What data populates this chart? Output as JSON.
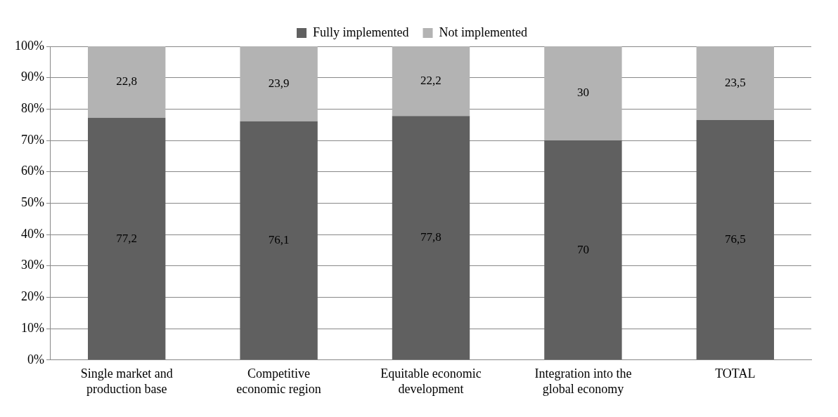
{
  "chart_data": {
    "type": "bar",
    "stacked": true,
    "categories": [
      "Single market and\nproduction base",
      "Competitive\neconomic region",
      "Equitable economic\ndevelopment",
      "Integration into the\nglobal economy",
      "TOTAL"
    ],
    "series": [
      {
        "name": "Fully implemented",
        "color": "#606060",
        "values": [
          77.2,
          76.1,
          77.8,
          70,
          76.5
        ],
        "value_labels": [
          "77,2",
          "76,1",
          "77,8",
          "70",
          "76,5"
        ]
      },
      {
        "name": "Not implemented",
        "color": "#b3b3b3",
        "values": [
          22.8,
          23.9,
          22.2,
          30,
          23.5
        ],
        "value_labels": [
          "22,8",
          "23,9",
          "22,2",
          "30",
          "23,5"
        ]
      }
    ],
    "ylim": [
      0,
      100
    ],
    "yticks": [
      {
        "value": 0,
        "label": "0%"
      },
      {
        "value": 10,
        "label": "10%"
      },
      {
        "value": 20,
        "label": "20%"
      },
      {
        "value": 30,
        "label": "30%"
      },
      {
        "value": 40,
        "label": "40%"
      },
      {
        "value": 50,
        "label": "50%"
      },
      {
        "value": 60,
        "label": "60%"
      },
      {
        "value": 70,
        "label": "70%"
      },
      {
        "value": 80,
        "label": "80%"
      },
      {
        "value": 90,
        "label": "90%"
      },
      {
        "value": 100,
        "label": "100%"
      }
    ],
    "grid": "y",
    "legend": "top"
  }
}
